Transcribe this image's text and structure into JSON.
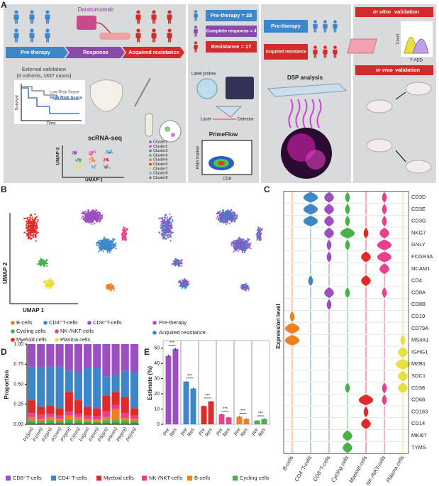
{
  "panel_labels": [
    "A",
    "B",
    "C",
    "D",
    "E"
  ],
  "panel_a": {
    "drug": "Daratumumab",
    "timeline": [
      "Pre-therapy",
      "Response",
      "Acquired resistance"
    ],
    "validation": [
      "External validation",
      "(4 cohorts, 1827 cases)"
    ],
    "risk": [
      "Low Risk Score",
      "High Risk Score"
    ],
    "survival_axes": [
      "Survival",
      "Time"
    ],
    "scrna": "scRNA-seq",
    "umap_axes": [
      "UMAP-2",
      "UMAP-1"
    ],
    "clusters": [
      "Cluster1",
      "Cluster2",
      "Cluster3",
      "Cluster4",
      "Cluster5",
      "Cluster6",
      "Cluster7",
      "Cluster8",
      "Cluster9"
    ],
    "cohorts": [
      "Pre-therapy = 28",
      "Complete response = 4",
      "Resistance = 17"
    ],
    "primeflow": [
      "Label probes",
      "Laser",
      "Detector",
      "PrimeFlow",
      "RNA marker",
      "CD8"
    ],
    "dsp": [
      "Pre-therapy",
      "Acquired resistance",
      "DSP analysis"
    ],
    "vitro": [
      "in vitro",
      "validation"
    ],
    "histogram_axes": [
      "Count",
      "7-ADD"
    ],
    "vivo": [
      "in vivo",
      "validation"
    ]
  },
  "panel_b": {
    "axes": [
      "UMAP 2",
      "UMAP 1"
    ],
    "cell_types": [
      "B-cells",
      "CD4⁺T-cells",
      "CD8⁺T-cells",
      "Cycling cells",
      "NK-/NKT-cells",
      "Myeloid cells",
      "Plasma cells"
    ],
    "colors": [
      "#f07f22",
      "#3d87c8",
      "#9b4fc0",
      "#4ab04a",
      "#e6408f",
      "#e02a2a",
      "#e8e040"
    ],
    "conditions": [
      "Pre-therapy",
      "Acquired resistance"
    ],
    "condition_colors": [
      "#9b4fc0",
      "#3d87c8"
    ]
  },
  "chart_data": [
    {
      "type": "violin",
      "ylabel": "Expression level",
      "categories": [
        "B-cells",
        "CD4⁺T-cells",
        "CD8⁺T-cells",
        "Cycling cells",
        "Myeloid cells",
        "NK-/NKT-cells",
        "Plasma cells"
      ],
      "colors": [
        "#f07f22",
        "#3d87c8",
        "#9b4fc0",
        "#4ab04a",
        "#e02a2a",
        "#e6408f",
        "#e8e040"
      ],
      "genes": [
        "CD3D",
        "CD3E",
        "CD3G",
        "NKG7",
        "GNLY",
        "FCGR3A",
        "NCAM1",
        "CD4",
        "CD8A",
        "CD8B",
        "CD19",
        "CD79A",
        "MS4A1",
        "IGHG1",
        "MZB1",
        "SDC1",
        "CD38",
        "CD68",
        "CD163",
        "CD14",
        "MKI67",
        "TYMS"
      ],
      "expression": [
        [
          0,
          3,
          2,
          1,
          0,
          1,
          0
        ],
        [
          0,
          3,
          2,
          1,
          0,
          1,
          0
        ],
        [
          0,
          3,
          2,
          1,
          0,
          1,
          0
        ],
        [
          0,
          0,
          2,
          3,
          1,
          2,
          0
        ],
        [
          0,
          0,
          1,
          1,
          0,
          3,
          0
        ],
        [
          0,
          0,
          1,
          0,
          2,
          3,
          0
        ],
        [
          0,
          0,
          0,
          0,
          0,
          2,
          0
        ],
        [
          0,
          1,
          0,
          0,
          2,
          0,
          0
        ],
        [
          0,
          0,
          2,
          1,
          0,
          1,
          0
        ],
        [
          0,
          0,
          1,
          0,
          0,
          0,
          0
        ],
        [
          1,
          0,
          0,
          0,
          0,
          0,
          0
        ],
        [
          3,
          0,
          0,
          0,
          0,
          0,
          0
        ],
        [
          3,
          0,
          0,
          0,
          0,
          0,
          1
        ],
        [
          0,
          0,
          0,
          0,
          0,
          0,
          2
        ],
        [
          0,
          0,
          0,
          0,
          0,
          0,
          3
        ],
        [
          0,
          0,
          0,
          0,
          0,
          0,
          2
        ],
        [
          0,
          0,
          0,
          1,
          0,
          1,
          2
        ],
        [
          0,
          0,
          0,
          0,
          3,
          1,
          0
        ],
        [
          0,
          0,
          0,
          0,
          1,
          0,
          0
        ],
        [
          0,
          0,
          0,
          0,
          2,
          0,
          0
        ],
        [
          0,
          0,
          0,
          2,
          0,
          0,
          0
        ],
        [
          0,
          0,
          0,
          2,
          0,
          0,
          0
        ]
      ]
    },
    {
      "type": "stacked_bar",
      "ylabel": "Proportion",
      "categories": [
        "P1(pre)",
        "P1(res)",
        "P2(pre)",
        "P2(res)",
        "P3(pre)",
        "P3(res)",
        "P4(pre)",
        "P4(res)",
        "P5(pre)",
        "P5(res)",
        "P6(pre)",
        "P6(res)"
      ],
      "ylim": [
        0,
        1
      ],
      "yticks": [
        {
          "value": 0,
          "label": "0.00"
        },
        {
          "value": 0.25,
          "label": "0.25"
        },
        {
          "value": 0.5,
          "label": "0.50"
        },
        {
          "value": 0.75,
          "label": "0.75"
        },
        {
          "value": 1,
          "label": "1.00"
        }
      ],
      "series": [
        {
          "name": "CD8⁺T-cells",
          "color": "#9b4fc0",
          "values": [
            0.28,
            0.3,
            0.28,
            0.28,
            0.33,
            0.35,
            0.3,
            0.3,
            0.4,
            0.38,
            0.33,
            0.35
          ]
        },
        {
          "name": "CD4⁺T-cells",
          "color": "#3d87c8",
          "values": [
            0.42,
            0.48,
            0.49,
            0.52,
            0.27,
            0.35,
            0.48,
            0.5,
            0.24,
            0.22,
            0.33,
            0.45
          ]
        },
        {
          "name": "Myeloid cells",
          "color": "#e02a2a",
          "values": [
            0.16,
            0.1,
            0.1,
            0.09,
            0.24,
            0.17,
            0.11,
            0.1,
            0.2,
            0.16,
            0.2,
            0.09
          ]
        },
        {
          "name": "NK-/NKT-cells",
          "color": "#e6408f",
          "values": [
            0.05,
            0.05,
            0.04,
            0.04,
            0.05,
            0.04,
            0.04,
            0.04,
            0.07,
            0.05,
            0.06,
            0.04
          ]
        },
        {
          "name": "B-cells",
          "color": "#f07f22",
          "values": [
            0.04,
            0.03,
            0.04,
            0.03,
            0.05,
            0.04,
            0.03,
            0.03,
            0.04,
            0.14,
            0.03,
            0.03
          ]
        },
        {
          "name": "Cycling cells",
          "color": "#4ab04a",
          "values": [
            0.05,
            0.04,
            0.05,
            0.04,
            0.06,
            0.05,
            0.04,
            0.03,
            0.05,
            0.05,
            0.05,
            0.04
          ]
        }
      ]
    },
    {
      "type": "bar",
      "ylabel": "Estimate (%)",
      "categories": [
        "Pre",
        "Res"
      ],
      "ylim": [
        0,
        55
      ],
      "yticks": [
        0,
        10,
        20,
        30,
        40,
        50
      ],
      "series": [
        {
          "color": "#9b4fc0",
          "values": [
            45,
            49.5
          ],
          "errors": [
            0.6,
            0.6
          ],
          "significance": "***"
        },
        {
          "color": "#3d87c8",
          "values": [
            28,
            23.5
          ],
          "errors": [
            0.5,
            0.5
          ],
          "significance": "***"
        },
        {
          "color": "#e02a2a",
          "values": [
            12,
            15
          ],
          "errors": [
            0.4,
            0.4
          ],
          "significance": "***"
        },
        {
          "color": "#e6408f",
          "values": [
            6.5,
            4.5
          ],
          "errors": [
            0.3,
            0.3
          ],
          "significance": "***"
        },
        {
          "color": "#f07f22",
          "values": [
            5,
            3.5
          ],
          "errors": [
            0.3,
            0.3
          ],
          "significance": "***"
        },
        {
          "color": "#4ab04a",
          "values": [
            2.5,
            3.5
          ],
          "errors": [
            0.2,
            0.2
          ],
          "significance": "***"
        }
      ]
    }
  ]
}
